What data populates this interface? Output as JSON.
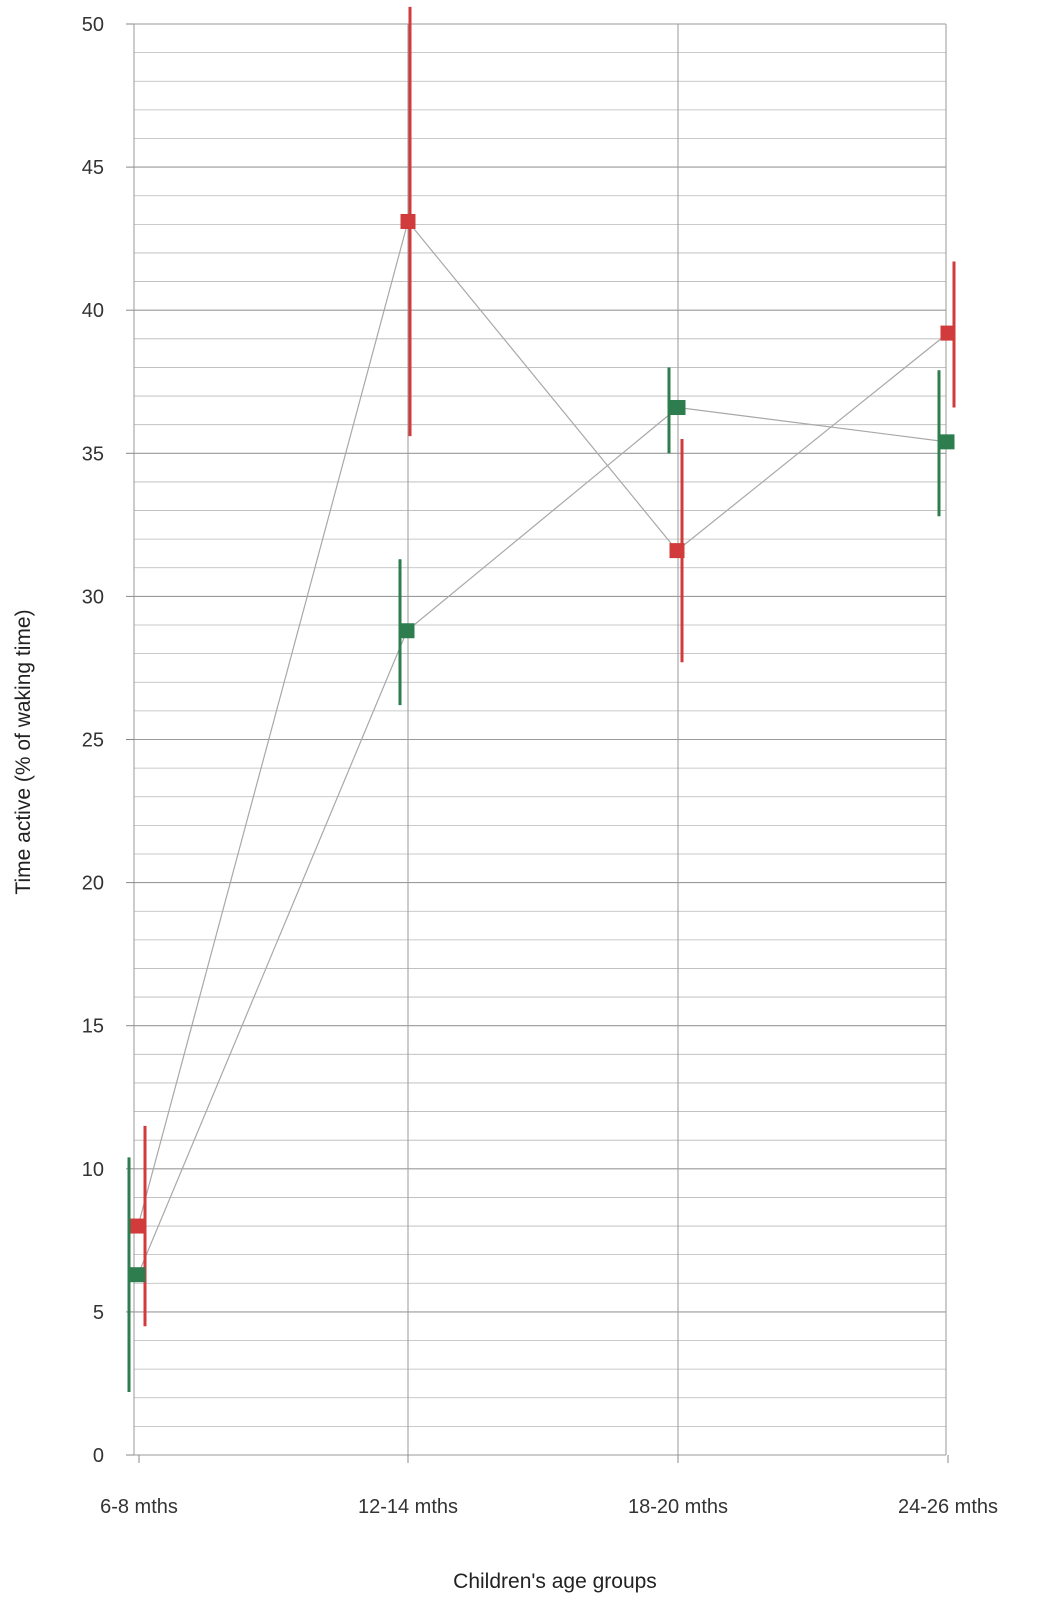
{
  "chart_data": {
    "type": "line",
    "title": "",
    "xlabel": "Children's age groups",
    "ylabel": "Time active (% of waking time)",
    "categories": [
      "6-8 mths",
      "12-14 mths",
      "18-20 mths",
      "24-26 mths"
    ],
    "ylim": [
      0,
      50
    ],
    "yticks": [
      "0",
      "5",
      "10",
      "15",
      "20",
      "25",
      "30",
      "35",
      "40",
      "45",
      "50"
    ],
    "minor_grid_step": 1,
    "grid": true,
    "legend": "none",
    "series": [
      {
        "color": "#d13b3b",
        "values": [
          8.0,
          43.1,
          31.6,
          39.2
        ],
        "error_low": [
          4.5,
          35.6,
          27.7,
          36.6
        ],
        "error_high": [
          11.5,
          50.6,
          35.5,
          41.7
        ]
      },
      {
        "color": "#2e7d4f",
        "values": [
          6.3,
          28.8,
          36.6,
          35.4
        ],
        "error_low": [
          2.2,
          26.2,
          35.0,
          32.8
        ],
        "error_high": [
          10.4,
          31.3,
          38.0,
          37.9
        ]
      }
    ]
  }
}
